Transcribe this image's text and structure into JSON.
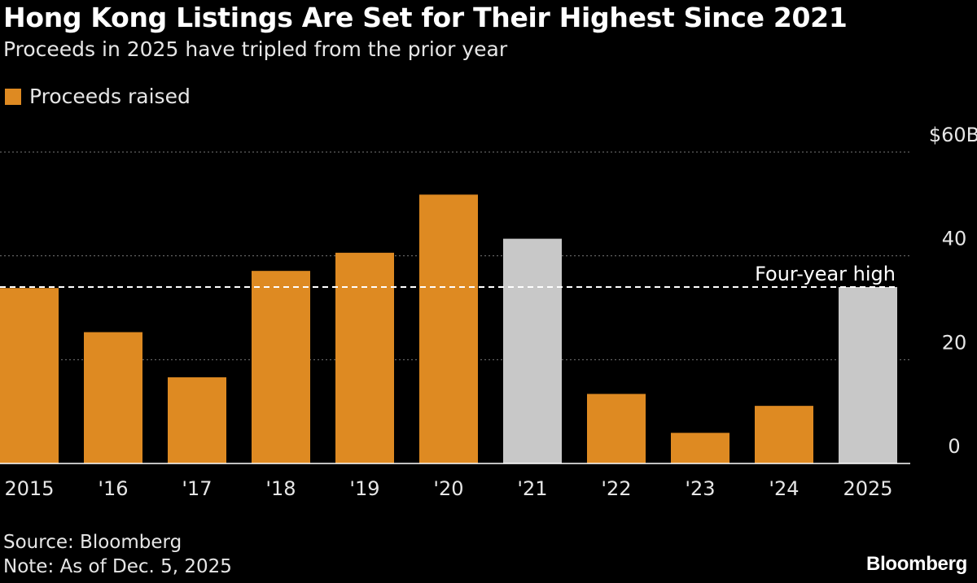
{
  "header": {
    "title": "Hong Kong Listings Are Set for Their Highest Since 2021",
    "subtitle": "Proceeds in 2025 have tripled from the prior year"
  },
  "legend": {
    "label": "Proceeds raised"
  },
  "footer": {
    "source": "Source: Bloomberg",
    "note": "Note: As of Dec. 5, 2025",
    "brand": "Bloomberg"
  },
  "colors": {
    "primary": "#de8a22",
    "highlight": "#c8c8c8",
    "background": "#000000",
    "gridline": "#777777",
    "text": "#ffffff"
  },
  "chart_data": {
    "type": "bar",
    "title": "Hong Kong Listings Are Set for Their Highest Since 2021",
    "subtitle": "Proceeds in 2025 have tripled from the prior year",
    "categories": [
      "2015",
      "'16",
      "'17",
      "'18",
      "'19",
      "'20",
      "'21",
      "'22",
      "'23",
      "'24",
      "2025"
    ],
    "series": [
      {
        "name": "Proceeds raised",
        "values": [
          33.8,
          25.3,
          16.6,
          37.1,
          40.6,
          51.8,
          43.3,
          13.4,
          5.9,
          11.1,
          34.0
        ],
        "highlight": [
          false,
          false,
          false,
          false,
          false,
          false,
          true,
          false,
          false,
          false,
          true
        ]
      }
    ],
    "ylim": [
      0,
      60
    ],
    "yticks": [
      0,
      20,
      40,
      60
    ],
    "ytick_labels": [
      "0",
      "20",
      "40",
      "$60B"
    ],
    "grid": true,
    "legend_position": "top-left",
    "reference_line": {
      "value": 34.0,
      "label": "Four-year high",
      "style": "dashed"
    },
    "xlabel": "",
    "ylabel": ""
  }
}
